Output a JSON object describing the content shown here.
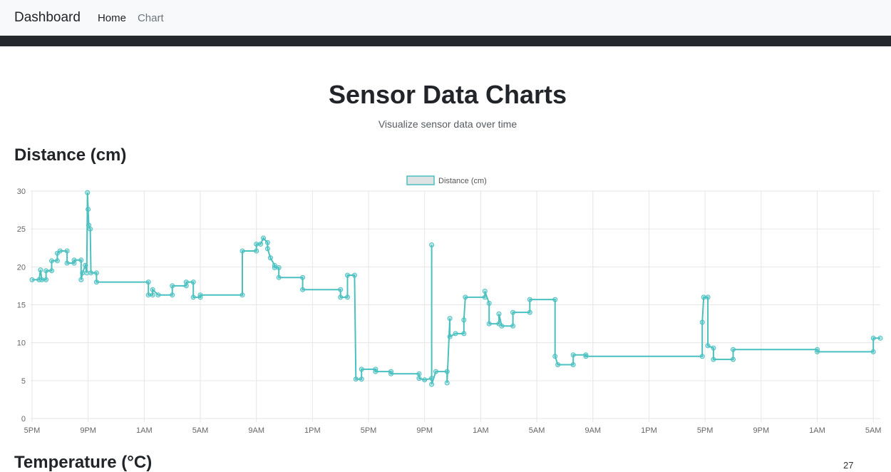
{
  "nav": {
    "brand": "Dashboard",
    "links": [
      "Home",
      "Chart"
    ]
  },
  "header": {
    "title": "Sensor Data Charts",
    "subtitle": "Visualize sensor data over time"
  },
  "sections": {
    "distance_title": "Distance (cm)",
    "temperature_title": "Temperature (°C)"
  },
  "page_number": "27",
  "colors": {
    "line": "#4bc0c0",
    "navbar_bg": "#f8f9fa",
    "dark_strip": "#25292e"
  },
  "chart_data": {
    "type": "line",
    "legend": "top",
    "grid": true,
    "ylim": [
      0,
      30
    ],
    "yticks": [
      0,
      5,
      10,
      15,
      20,
      25,
      30
    ],
    "xticks": [
      "5PM",
      "9PM",
      "1AM",
      "5AM",
      "9AM",
      "1PM",
      "5PM",
      "9PM",
      "1AM",
      "5AM",
      "9AM",
      "1PM",
      "5PM",
      "9PM",
      "1AM",
      "5AM"
    ],
    "xlim_hours": [
      -0.1,
      60.5
    ],
    "series": [
      {
        "name": "Distance (cm)",
        "color": "#4bc0c0",
        "points": [
          [
            0.0,
            18.3
          ],
          [
            0.5,
            18.3
          ],
          [
            0.6,
            19.6
          ],
          [
            0.7,
            18.3
          ],
          [
            1.0,
            18.3
          ],
          [
            1.0,
            19.5
          ],
          [
            1.4,
            19.5
          ],
          [
            1.4,
            20.8
          ],
          [
            1.8,
            20.8
          ],
          [
            1.8,
            21.8
          ],
          [
            2.0,
            22.1
          ],
          [
            2.5,
            22.1
          ],
          [
            2.5,
            20.5
          ],
          [
            3.0,
            20.5
          ],
          [
            3.0,
            20.9
          ],
          [
            3.5,
            20.9
          ],
          [
            3.5,
            18.3
          ],
          [
            3.6,
            19.2
          ],
          [
            3.8,
            20.2
          ],
          [
            3.9,
            19.2
          ],
          [
            3.95,
            29.8
          ],
          [
            4.0,
            27.6
          ],
          [
            4.05,
            25.5
          ],
          [
            4.15,
            25.0
          ],
          [
            4.2,
            19.2
          ],
          [
            4.6,
            19.2
          ],
          [
            4.6,
            18.0
          ],
          [
            8.3,
            18.0
          ],
          [
            8.3,
            16.3
          ],
          [
            8.6,
            16.3
          ],
          [
            8.6,
            17.0
          ],
          [
            9.0,
            16.3
          ],
          [
            10.0,
            16.3
          ],
          [
            10.0,
            17.5
          ],
          [
            11.0,
            17.5
          ],
          [
            11.0,
            18.0
          ],
          [
            11.5,
            18.0
          ],
          [
            11.5,
            16.0
          ],
          [
            12.0,
            16.0
          ],
          [
            12.0,
            16.3
          ],
          [
            15.0,
            16.3
          ],
          [
            15.0,
            22.1
          ],
          [
            16.0,
            22.1
          ],
          [
            16.0,
            23.0
          ],
          [
            16.3,
            23.0
          ],
          [
            16.5,
            23.8
          ],
          [
            16.8,
            23.2
          ],
          [
            16.8,
            22.4
          ],
          [
            17.0,
            21.2
          ],
          [
            17.3,
            20.2
          ],
          [
            17.3,
            19.9
          ],
          [
            17.6,
            19.9
          ],
          [
            17.6,
            18.6
          ],
          [
            19.3,
            18.6
          ],
          [
            19.3,
            17.0
          ],
          [
            22.0,
            17.0
          ],
          [
            22.0,
            16.0
          ],
          [
            22.5,
            16.0
          ],
          [
            22.5,
            18.9
          ],
          [
            23.0,
            18.9
          ],
          [
            23.1,
            5.2
          ],
          [
            23.5,
            5.2
          ],
          [
            23.5,
            6.5
          ],
          [
            24.5,
            6.5
          ],
          [
            24.5,
            6.2
          ],
          [
            25.6,
            6.2
          ],
          [
            25.6,
            5.9
          ],
          [
            27.6,
            5.9
          ],
          [
            27.6,
            5.3
          ],
          [
            28.0,
            5.1
          ],
          [
            28.5,
            5.3
          ],
          [
            28.5,
            22.9
          ],
          [
            28.5,
            4.5
          ],
          [
            28.8,
            6.2
          ],
          [
            29.6,
            6.2
          ],
          [
            29.6,
            4.7
          ],
          [
            29.8,
            13.2
          ],
          [
            29.8,
            10.8
          ],
          [
            30.2,
            11.2
          ],
          [
            30.8,
            11.2
          ],
          [
            30.8,
            13.0
          ],
          [
            30.9,
            16.0
          ],
          [
            32.3,
            16.0
          ],
          [
            32.3,
            16.8
          ],
          [
            32.6,
            15.2
          ],
          [
            32.6,
            12.5
          ],
          [
            33.3,
            12.5
          ],
          [
            33.3,
            13.8
          ],
          [
            33.5,
            12.2
          ],
          [
            34.3,
            12.2
          ],
          [
            34.3,
            14.0
          ],
          [
            35.5,
            14.0
          ],
          [
            35.5,
            15.7
          ],
          [
            37.3,
            15.7
          ],
          [
            37.3,
            8.2
          ],
          [
            37.5,
            7.1
          ],
          [
            38.6,
            7.1
          ],
          [
            38.6,
            8.4
          ],
          [
            39.5,
            8.4
          ],
          [
            39.5,
            8.2
          ],
          [
            47.8,
            8.2
          ],
          [
            47.8,
            12.7
          ],
          [
            47.9,
            16.0
          ],
          [
            48.2,
            16.0
          ],
          [
            48.2,
            9.6
          ],
          [
            48.6,
            9.3
          ],
          [
            48.6,
            7.8
          ],
          [
            50.0,
            7.8
          ],
          [
            50.0,
            9.1
          ],
          [
            56.0,
            9.1
          ],
          [
            56.0,
            8.8
          ],
          [
            60.0,
            8.8
          ],
          [
            60.0,
            10.6
          ],
          [
            60.5,
            10.6
          ]
        ]
      }
    ]
  }
}
